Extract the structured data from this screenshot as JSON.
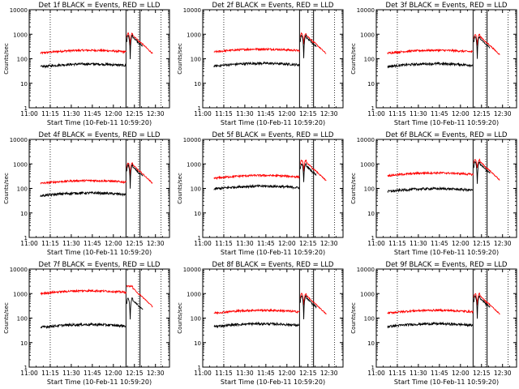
{
  "chart_data": {
    "type": "line",
    "layout": "3x3 grid",
    "y_scale": "log",
    "ylim": [
      1,
      10000
    ],
    "y_ticks": [
      "1",
      "10",
      "100",
      "1000",
      "10000"
    ],
    "ylabel": "Counts/sec",
    "xlim": [
      "11:00",
      "12:40"
    ],
    "x_ticks": [
      "11:00",
      "11:15",
      "11:30",
      "11:45",
      "12:00",
      "12:15",
      "12:30"
    ],
    "xlabel": "Start Time (10-Feb-11 10:59:20)",
    "series_colors": {
      "Events": "#000000",
      "LLD": "#ff0000"
    },
    "vertical_markers": {
      "dotted": [
        "11:15",
        "12:18",
        "12:34"
      ],
      "solid": [
        "12:09",
        "12:19"
      ]
    },
    "panels": [
      {
        "title": "Det 1f BLACK = Events, RED = LLD",
        "lld_base": 170,
        "events_base": 47,
        "lld_peak": 1100,
        "events_peak": 900
      },
      {
        "title": "Det 2f BLACK = Events, RED = LLD",
        "lld_base": 190,
        "events_base": 50,
        "lld_peak": 1100,
        "events_peak": 900
      },
      {
        "title": "Det 3f BLACK = Events, RED = LLD",
        "lld_base": 170,
        "events_base": 48,
        "lld_peak": 1000,
        "events_peak": 800
      },
      {
        "title": "Det 4f BLACK = Events, RED = LLD",
        "lld_base": 160,
        "events_base": 50,
        "lld_peak": 1100,
        "events_peak": 900
      },
      {
        "title": "Det 5f BLACK = Events, RED = LLD",
        "lld_base": 260,
        "events_base": 95,
        "lld_peak": 1400,
        "events_peak": 1000
      },
      {
        "title": "Det 6f BLACK = Events, RED = LLD",
        "lld_base": 330,
        "events_base": 75,
        "lld_peak": 1500,
        "events_peak": 1200
      },
      {
        "title": "Det 7f BLACK = Events, RED = LLD",
        "lld_base": 1000,
        "events_base": 42,
        "lld_peak": 2000,
        "events_peak": 650
      },
      {
        "title": "Det 8f BLACK = Events, RED = LLD",
        "lld_base": 160,
        "events_base": 45,
        "lld_peak": 1000,
        "events_peak": 800
      },
      {
        "title": "Det 9f BLACK = Events, RED = LLD",
        "lld_base": 160,
        "events_base": 45,
        "lld_peak": 1000,
        "events_peak": 800
      }
    ]
  }
}
